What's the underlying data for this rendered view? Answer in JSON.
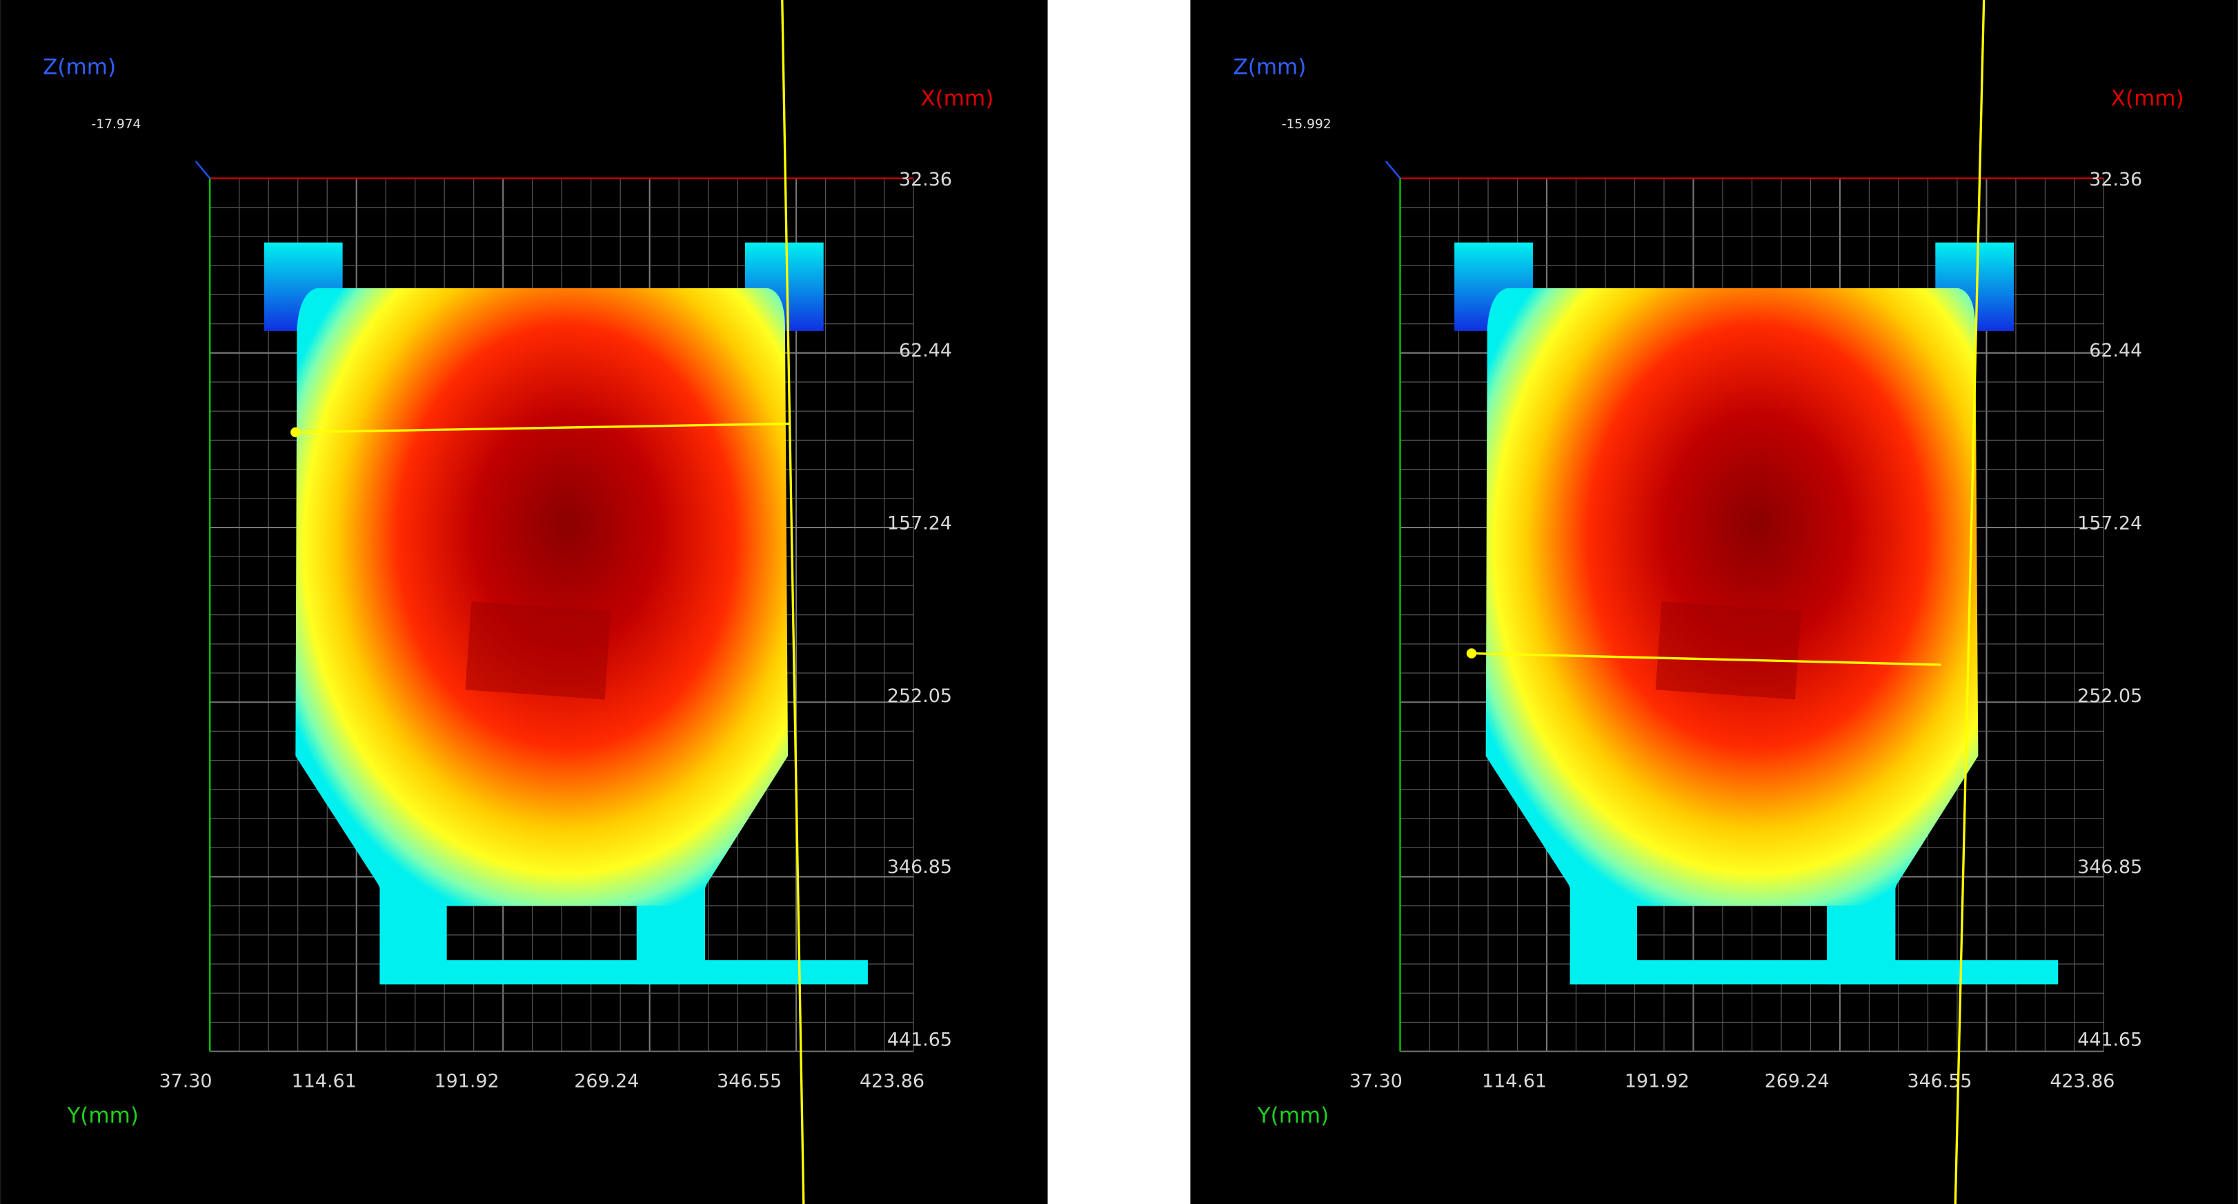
{
  "panels": [
    {
      "z_label": "Z(mm)",
      "x_label": "X(mm)",
      "y_label": "Y(mm)",
      "corner_text": "-17.974",
      "y_ticks": [
        "32.36",
        "62.44",
        "157.24",
        "252.05",
        "346.85",
        "441.65"
      ],
      "x_ticks": [
        "37.30",
        "114.61",
        "191.92",
        "269.24",
        "346.55",
        "423.86"
      ]
    },
    {
      "z_label": "Z(mm)",
      "x_label": "X(mm)",
      "y_label": "Y(mm)",
      "corner_text": "-15.992",
      "y_ticks": [
        "32.36",
        "62.44",
        "157.24",
        "252.05",
        "346.85",
        "441.65"
      ],
      "x_ticks": [
        "37.30",
        "114.61",
        "191.92",
        "269.24",
        "346.55",
        "423.86"
      ]
    }
  ]
}
